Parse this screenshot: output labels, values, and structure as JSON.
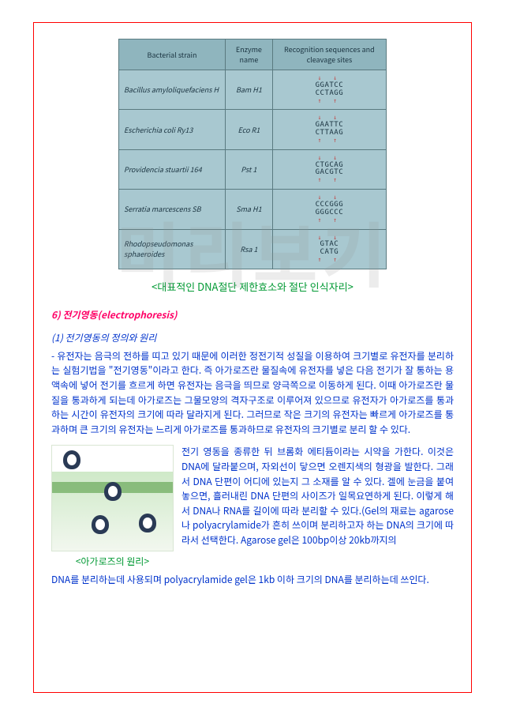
{
  "watermark": "미리보기",
  "table": {
    "headers": [
      "Bacterial strain",
      "Enzyme name",
      "Recognition sequences and cleavage sites"
    ],
    "rows": [
      {
        "strain": "Bacillus amyloliquefaciens H",
        "enzyme": "Bam H1",
        "seq_top": "GGATCC",
        "seq_bot": "CCTAGG"
      },
      {
        "strain": "Escherichia coli Ry13",
        "enzyme": "Eco R1",
        "seq_top": "GAATTC",
        "seq_bot": "CTTAAG"
      },
      {
        "strain": "Providencia stuartii 164",
        "enzyme": "Pst 1",
        "seq_top": "CTGCAG",
        "seq_bot": "GACGTC"
      },
      {
        "strain": "Serratia marcescens SB",
        "enzyme": "Sma H1",
        "seq_top": "CCCGGG",
        "seq_bot": "GGGCCC"
      },
      {
        "strain": "Rhodopseudomonas sphaeroides",
        "enzyme": "Rsa 1",
        "seq_top": "GTAC",
        "seq_bot": "CATG"
      }
    ]
  },
  "caption1_open": "<",
  "caption1_text": "대표적인 DNA절단 제한효소와 절단 인식자리",
  "caption1_close": ">",
  "section": {
    "num": "6)",
    "title_ko": "전기영동",
    "title_en": "(electrophoresis)"
  },
  "subsection": "(1) 전기영동의 정의와 원리",
  "para1": "- 유전자는 음극의 전하를 띠고 있기 때문에 이러한 정전기적 성질을 이용하여 크기별로 유전자를 분리하는 실험기법을 \"전기영동\"이라고 한다. 즉 아가로즈란 물질속에 유전자를 넣은 다음 전기가 잘 통하는 용액속에 넣어 전기를 흐르게 하면 유전자는 음극을 띄므로 양극쪽으로 이동하게 된다. 이때 아가로즈란 물질을 통과하게 되는데 아가로즈는 그물모양의 격자구조로 이루어져 있으므로 유전자가 아가로즈를 통과하는 시간이 유전자의 크기에 따라 달라지게 된다. 그러므로 작은 크기의 유전자는 빠르게 아가로즈를 통과하며 큰 크기의 유전자는 느리게 아가로즈를 통과하므로 유전자의 크기별로 분리 할 수 있다.",
  "fig2_caption": "<아가로즈의 원리>",
  "para2": "전기 영동을 종류한 뒤 브롬화 에티듐이라는 시약을 가한다. 이것은 DNA에 달라붙으며, 자외선이 닿으면 오렌지색의 형광을 발한다. 그래서 DNA 단편이 어디에 있는지 그 소재를 알 수 있다. 겔에 눈금을 붙여 놓으면, 흘러내린 DNA 단편의 사이즈가 일목요연하게 된다. 이렇게 해서 DNA나 RNA를 길이에 따라 분리할 수 있다.(Gel의 재료는 agarose나 polyacrylamide가 흔히 쓰이며 분리하고자 하는 DNA의 크기에 따라서 선택한다. Agarose gel은 100bp이상 20kb까지의",
  "para3": "DNA를 분리하는데 사용되며 polyacrylamide gel은 1kb 이하 크기의 DNA를 분리하는데 쓰인다.",
  "colors": {
    "border": "#ff0000",
    "green": "#009933",
    "blue": "#0033cc",
    "pink": "#ff0066",
    "table_bg": "#a8c8d0",
    "table_header": "#8fb5be",
    "table_border": "#5a7a80"
  }
}
